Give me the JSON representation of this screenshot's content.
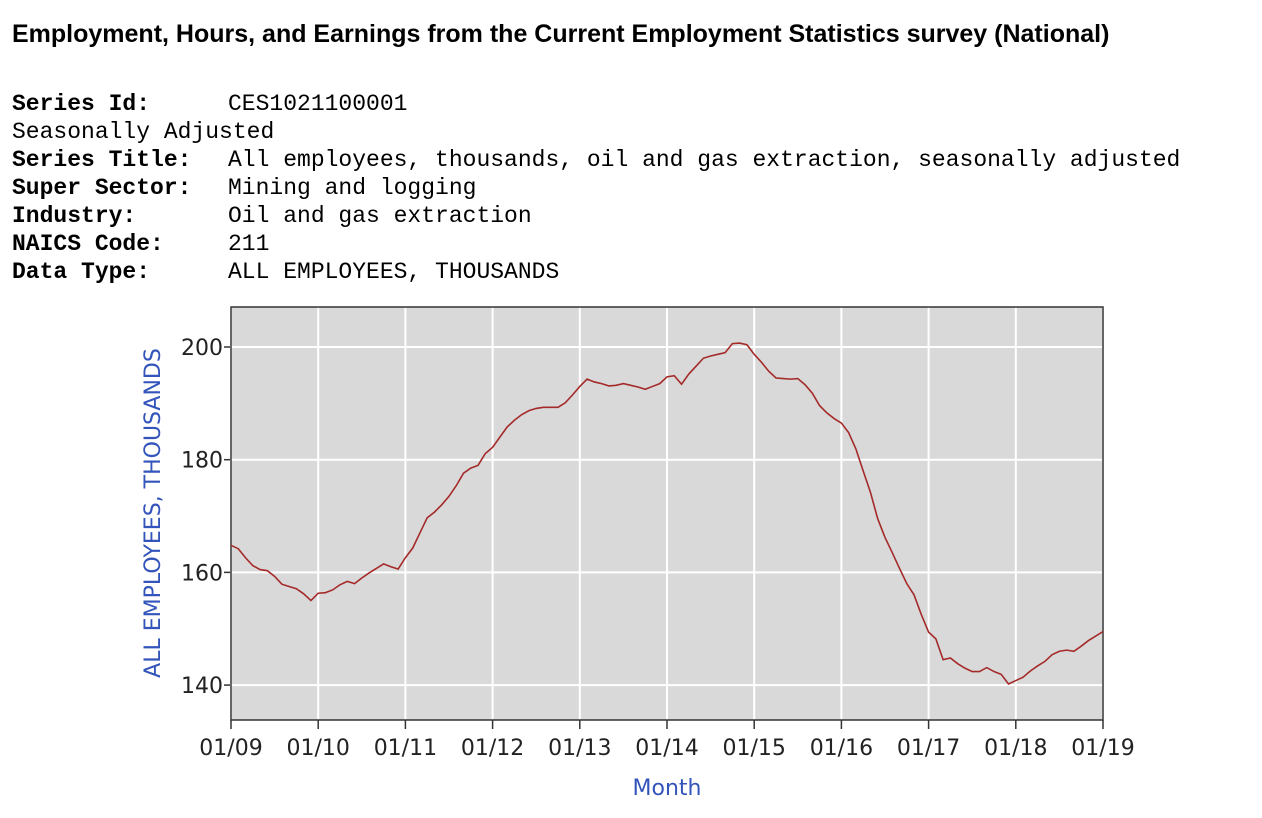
{
  "header": {
    "title": "Employment, Hours, and Earnings from the Current Employment Statistics survey (National)",
    "lines": [
      {
        "label": "Series Id:",
        "value": "CES1021100001"
      },
      {
        "text": "Seasonally Adjusted"
      },
      {
        "label": "Series Title:",
        "value": "All employees, thousands, oil and gas extraction, seasonally adjusted"
      },
      {
        "label": "Super Sector:",
        "value": "Mining and logging"
      },
      {
        "label": "Industry:",
        "value": "Oil and gas extraction"
      },
      {
        "label": "NAICS Code:",
        "value": "211"
      },
      {
        "label": "Data Type:",
        "value": "ALL EMPLOYEES, THOUSANDS"
      }
    ]
  },
  "chart_data": {
    "type": "line",
    "xlabel": "Month",
    "ylabel": "ALL EMPLOYEES, THOUSANDS",
    "color": "#a52a2a",
    "grid": true,
    "x": [
      "01/09",
      "02/09",
      "03/09",
      "04/09",
      "05/09",
      "06/09",
      "07/09",
      "08/09",
      "09/09",
      "10/09",
      "11/09",
      "12/09",
      "01/10",
      "02/10",
      "03/10",
      "04/10",
      "05/10",
      "06/10",
      "07/10",
      "08/10",
      "09/10",
      "10/10",
      "11/10",
      "12/10",
      "01/11",
      "02/11",
      "03/11",
      "04/11",
      "05/11",
      "06/11",
      "07/11",
      "08/11",
      "09/11",
      "10/11",
      "11/11",
      "12/11",
      "01/12",
      "02/12",
      "03/12",
      "04/12",
      "05/12",
      "06/12",
      "07/12",
      "08/12",
      "09/12",
      "10/12",
      "11/12",
      "12/12",
      "01/13",
      "02/13",
      "03/13",
      "04/13",
      "05/13",
      "06/13",
      "07/13",
      "08/13",
      "09/13",
      "10/13",
      "11/13",
      "12/13",
      "01/14",
      "02/14",
      "03/14",
      "04/14",
      "05/14",
      "06/14",
      "07/14",
      "08/14",
      "09/14",
      "10/14",
      "11/14",
      "12/14",
      "01/15",
      "02/15",
      "03/15",
      "04/15",
      "05/15",
      "06/15",
      "07/15",
      "08/15",
      "09/15",
      "10/15",
      "11/15",
      "12/15",
      "01/16",
      "02/16",
      "03/16",
      "04/16",
      "05/16",
      "06/16",
      "07/16",
      "08/16",
      "09/16",
      "10/16",
      "11/16",
      "12/16",
      "01/17",
      "02/17",
      "03/17",
      "04/17",
      "05/17",
      "06/17",
      "07/17",
      "08/17",
      "09/17",
      "10/17",
      "11/17",
      "12/17",
      "01/18",
      "02/18",
      "03/18",
      "04/18",
      "05/18",
      "06/18",
      "07/18",
      "08/18",
      "09/18",
      "10/18",
      "11/18",
      "12/18",
      "01/19"
    ],
    "values": [
      164.8,
      164.2,
      162.6,
      161.2,
      160.5,
      160.3,
      159.3,
      157.9,
      157.5,
      157.1,
      156.2,
      155.0,
      156.3,
      156.4,
      156.9,
      157.8,
      158.4,
      158.0,
      159.0,
      159.9,
      160.7,
      161.5,
      161.0,
      160.6,
      162.6,
      164.3,
      167.0,
      169.7,
      170.7,
      172.0,
      173.5,
      175.4,
      177.6,
      178.5,
      179.0,
      181.1,
      182.2,
      184.0,
      185.8,
      187.0,
      188.0,
      188.7,
      189.1,
      189.3,
      189.3,
      189.3,
      190.1,
      191.5,
      193.0,
      194.3,
      193.8,
      193.5,
      193.1,
      193.2,
      193.5,
      193.2,
      192.9,
      192.5,
      193.0,
      193.5,
      194.7,
      194.9,
      193.4,
      195.2,
      196.6,
      198.0,
      198.4,
      198.7,
      199.0,
      200.6,
      200.7,
      200.4,
      198.7,
      197.3,
      195.7,
      194.5,
      194.4,
      194.3,
      194.4,
      193.3,
      191.8,
      189.6,
      188.3,
      187.3,
      186.5,
      184.8,
      181.9,
      178.0,
      174.2,
      169.5,
      166.2,
      163.5,
      160.7,
      158.0,
      156.0,
      152.5,
      149.4,
      148.2,
      144.5,
      144.8,
      143.8,
      143.0,
      142.4,
      142.4,
      143.1,
      142.4,
      141.9,
      140.2,
      140.8,
      141.4,
      142.5,
      143.4,
      144.2,
      145.4,
      146.0,
      146.2,
      146.0,
      146.9,
      147.9,
      148.7,
      149.5
    ],
    "xticks": [
      "01/09",
      "01/10",
      "01/11",
      "01/12",
      "01/13",
      "01/14",
      "01/15",
      "01/16",
      "01/17",
      "01/18",
      "01/19"
    ],
    "ylim": [
      133.8,
      207.1
    ],
    "yticks": [
      140,
      160,
      180,
      200
    ]
  }
}
